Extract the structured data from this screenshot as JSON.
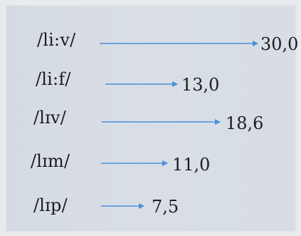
{
  "items": [
    {
      "label": "/li:v/",
      "value": "30,0",
      "number": 30.0
    },
    {
      "label": "/li:f/",
      "value": "13,0",
      "number": 13.0
    },
    {
      "label": "/lɪv/",
      "value": "18,6",
      "number": 18.6
    },
    {
      "label": "/lɪm/",
      "value": "11,0",
      "number": 11.0
    },
    {
      "label": "/lɪp/",
      "value": "7,5",
      "number": 7.5
    }
  ],
  "colors": {
    "background": "#e9eaee",
    "panel": "#d8dde5",
    "text": "#1d1d1d",
    "arrow": "#4a90d9"
  }
}
